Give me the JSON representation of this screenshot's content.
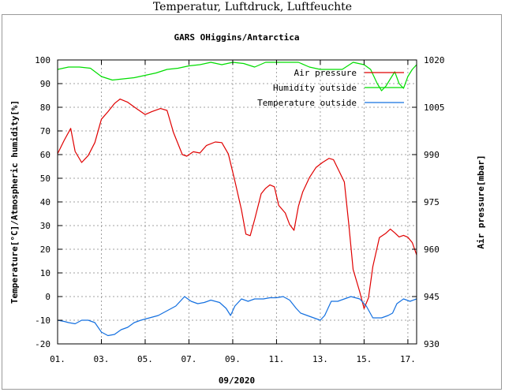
{
  "page": {
    "title": "Temperatur, Luftdruck, Luftfeuchte"
  },
  "chart_data": {
    "type": "line",
    "title": "GARS OHiggins/Antarctica",
    "xlabel": "09/2020",
    "ylabel_left": "Temperature[°C]/Atmospheric humidity[%]",
    "ylabel_right": "Air pressure[mbar]",
    "x_unit": "day of September 2020",
    "xlim": [
      1,
      17.4
    ],
    "ylim_left": [
      -20,
      100
    ],
    "ylim_right": [
      930,
      1020
    ],
    "grid": true,
    "legend_position": "top-right",
    "x_ticks": [
      {
        "value": 1,
        "label": "01."
      },
      {
        "value": 3,
        "label": "03."
      },
      {
        "value": 5,
        "label": "05."
      },
      {
        "value": 7,
        "label": "07."
      },
      {
        "value": 9,
        "label": "09."
      },
      {
        "value": 11,
        "label": "11."
      },
      {
        "value": 13,
        "label": "13."
      },
      {
        "value": 15,
        "label": "15."
      },
      {
        "value": 17,
        "label": "17."
      }
    ],
    "y_ticks_left": [
      -20,
      -10,
      0,
      10,
      20,
      30,
      40,
      50,
      60,
      70,
      80,
      90,
      100
    ],
    "y_ticks_right": [
      930,
      945,
      960,
      975,
      990,
      1005,
      1020
    ],
    "series": [
      {
        "name": "Air pressure",
        "color": "#e00000",
        "axis": "right",
        "points": [
          [
            1.0,
            990.3
          ],
          [
            1.3,
            994.5
          ],
          [
            1.6,
            998.3
          ],
          [
            1.8,
            991
          ],
          [
            2.1,
            987.5
          ],
          [
            2.4,
            989.7
          ],
          [
            2.7,
            993.8
          ],
          [
            3.0,
            1001.2
          ],
          [
            3.3,
            1003.6
          ],
          [
            3.6,
            1006.2
          ],
          [
            3.85,
            1007.6
          ],
          [
            4.2,
            1006.6
          ],
          [
            4.6,
            1004.6
          ],
          [
            5.0,
            1002.7
          ],
          [
            5.3,
            1003.6
          ],
          [
            5.7,
            1004.6
          ],
          [
            6.0,
            1004.0
          ],
          [
            6.3,
            996.9
          ],
          [
            6.7,
            990.0
          ],
          [
            6.9,
            989.5
          ],
          [
            7.2,
            990.9
          ],
          [
            7.5,
            990.5
          ],
          [
            7.8,
            992.9
          ],
          [
            8.2,
            994.0
          ],
          [
            8.5,
            993.8
          ],
          [
            8.8,
            990.2
          ],
          [
            9.1,
            981.6
          ],
          [
            9.4,
            972.5
          ],
          [
            9.6,
            964.8
          ],
          [
            9.8,
            964.3
          ],
          [
            10.0,
            969.4
          ],
          [
            10.3,
            977.6
          ],
          [
            10.5,
            979.3
          ],
          [
            10.7,
            980.4
          ],
          [
            10.9,
            979.8
          ],
          [
            11.1,
            973.9
          ],
          [
            11.4,
            971.5
          ],
          [
            11.6,
            967.8
          ],
          [
            11.8,
            966.0
          ],
          [
            12.0,
            973.6
          ],
          [
            12.2,
            978.2
          ],
          [
            12.5,
            982.7
          ],
          [
            12.8,
            985.9
          ],
          [
            13.1,
            987.5
          ],
          [
            13.4,
            988.8
          ],
          [
            13.6,
            988.4
          ],
          [
            13.8,
            985.6
          ],
          [
            14.1,
            981.3
          ],
          [
            14.3,
            968.0
          ],
          [
            14.5,
            953.6
          ],
          [
            14.8,
            946.5
          ],
          [
            15.0,
            941.2
          ],
          [
            15.2,
            944.6
          ],
          [
            15.4,
            954.5
          ],
          [
            15.7,
            963.7
          ],
          [
            16.0,
            965.1
          ],
          [
            16.2,
            966.4
          ],
          [
            16.4,
            965.2
          ],
          [
            16.6,
            963.9
          ],
          [
            16.8,
            964.4
          ],
          [
            17.0,
            963.8
          ],
          [
            17.2,
            962.1
          ],
          [
            17.4,
            958.2
          ]
        ]
      },
      {
        "name": "Humidity outside",
        "color": "#00dd00",
        "axis": "left",
        "points": [
          [
            1.0,
            96
          ],
          [
            1.5,
            97
          ],
          [
            2.0,
            97
          ],
          [
            2.5,
            96.5
          ],
          [
            3.0,
            93
          ],
          [
            3.5,
            91.5
          ],
          [
            4.0,
            92
          ],
          [
            4.5,
            92.5
          ],
          [
            5.0,
            93.5
          ],
          [
            5.5,
            94.5
          ],
          [
            6.0,
            96
          ],
          [
            6.5,
            96.5
          ],
          [
            7.0,
            97.5
          ],
          [
            7.5,
            98
          ],
          [
            8.0,
            99
          ],
          [
            8.5,
            98
          ],
          [
            9.0,
            99
          ],
          [
            9.5,
            98.5
          ],
          [
            10.0,
            97
          ],
          [
            10.5,
            99
          ],
          [
            11.0,
            99
          ],
          [
            11.5,
            99
          ],
          [
            12.0,
            99
          ],
          [
            12.5,
            97
          ],
          [
            13.0,
            96
          ],
          [
            13.5,
            96
          ],
          [
            14.0,
            96
          ],
          [
            14.5,
            99
          ],
          [
            15.0,
            98
          ],
          [
            15.3,
            96
          ],
          [
            15.6,
            90
          ],
          [
            15.8,
            87
          ],
          [
            16.0,
            89
          ],
          [
            16.2,
            92
          ],
          [
            16.4,
            95
          ],
          [
            16.6,
            90
          ],
          [
            16.8,
            88
          ],
          [
            17.0,
            93
          ],
          [
            17.2,
            96
          ],
          [
            17.4,
            98
          ]
        ]
      },
      {
        "name": "Temperature outside",
        "color": "#1470e0",
        "axis": "left",
        "points": [
          [
            1.0,
            -10
          ],
          [
            1.3,
            -10.5
          ],
          [
            1.5,
            -11
          ],
          [
            1.8,
            -11.5
          ],
          [
            2.1,
            -10
          ],
          [
            2.4,
            -10
          ],
          [
            2.7,
            -11
          ],
          [
            3.0,
            -15
          ],
          [
            3.3,
            -16.5
          ],
          [
            3.6,
            -16
          ],
          [
            3.9,
            -14
          ],
          [
            4.2,
            -13
          ],
          [
            4.5,
            -11
          ],
          [
            4.8,
            -10
          ],
          [
            5.2,
            -9
          ],
          [
            5.6,
            -8
          ],
          [
            6.0,
            -6
          ],
          [
            6.4,
            -4
          ],
          [
            6.8,
            0
          ],
          [
            7.1,
            -2
          ],
          [
            7.4,
            -3
          ],
          [
            7.7,
            -2.5
          ],
          [
            8.0,
            -1.5
          ],
          [
            8.4,
            -2.5
          ],
          [
            8.7,
            -5
          ],
          [
            8.9,
            -8
          ],
          [
            9.1,
            -4
          ],
          [
            9.4,
            -1
          ],
          [
            9.7,
            -2
          ],
          [
            10.0,
            -1
          ],
          [
            10.4,
            -1
          ],
          [
            10.7,
            -0.5
          ],
          [
            11.0,
            -0.5
          ],
          [
            11.3,
            0
          ],
          [
            11.6,
            -1.5
          ],
          [
            11.9,
            -5
          ],
          [
            12.1,
            -7
          ],
          [
            12.4,
            -8
          ],
          [
            12.7,
            -9
          ],
          [
            13.0,
            -10
          ],
          [
            13.2,
            -8
          ],
          [
            13.5,
            -2
          ],
          [
            13.8,
            -2
          ],
          [
            14.1,
            -1
          ],
          [
            14.4,
            0
          ],
          [
            14.8,
            -1
          ],
          [
            15.1,
            -4
          ],
          [
            15.4,
            -9
          ],
          [
            15.8,
            -9
          ],
          [
            16.1,
            -8
          ],
          [
            16.3,
            -7
          ],
          [
            16.5,
            -3
          ],
          [
            16.8,
            -1
          ],
          [
            17.1,
            -2
          ],
          [
            17.4,
            -1
          ]
        ]
      }
    ]
  }
}
